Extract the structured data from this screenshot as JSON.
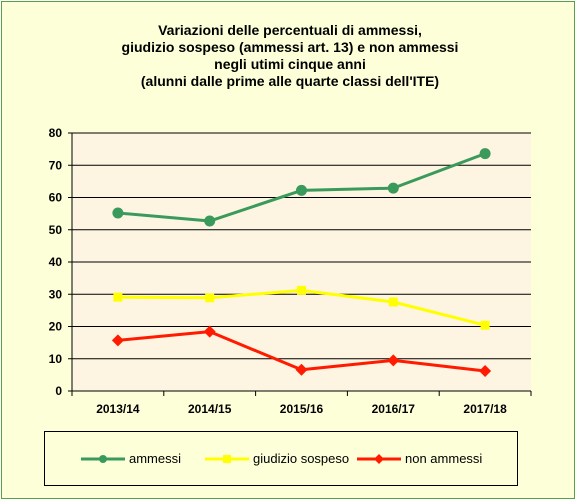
{
  "title_lines": [
    "Variazioni delle percentuali di ammessi,",
    "giudizio sospeso (ammessi  art. 13) e non ammessi",
    "negli utimi  cinque anni",
    "(alunni dalle prime alle quarte classi dell'ITE)"
  ],
  "chart_data": {
    "type": "line",
    "title": "Variazioni delle percentuali di ammessi, giudizio sospeso (ammessi  art. 13) e non ammessi negli utimi  cinque anni (alunni dalle prime alle quarte classi dell'ITE)",
    "categories": [
      "2013/14",
      "2014/15",
      "2015/16",
      "2016/17",
      "2017/18"
    ],
    "ylim": [
      0,
      80
    ],
    "yticks": [
      0,
      10,
      20,
      30,
      40,
      50,
      60,
      70,
      80
    ],
    "grid": true,
    "legend_position": "bottom",
    "plot_background": "#fdf5e2",
    "series": [
      {
        "name": "ammessi",
        "color": "#3a9a5c",
        "marker": "circle",
        "values": [
          55.2,
          52.7,
          62.2,
          62.9,
          73.6
        ]
      },
      {
        "name": "giudizio sospeso",
        "color": "#ffff00",
        "marker": "square",
        "values": [
          29.1,
          28.9,
          31.2,
          27.6,
          20.4
        ]
      },
      {
        "name": "non ammessi",
        "color": "#ff1a00",
        "marker": "diamond",
        "values": [
          15.7,
          18.4,
          6.6,
          9.5,
          6.2
        ]
      }
    ]
  }
}
